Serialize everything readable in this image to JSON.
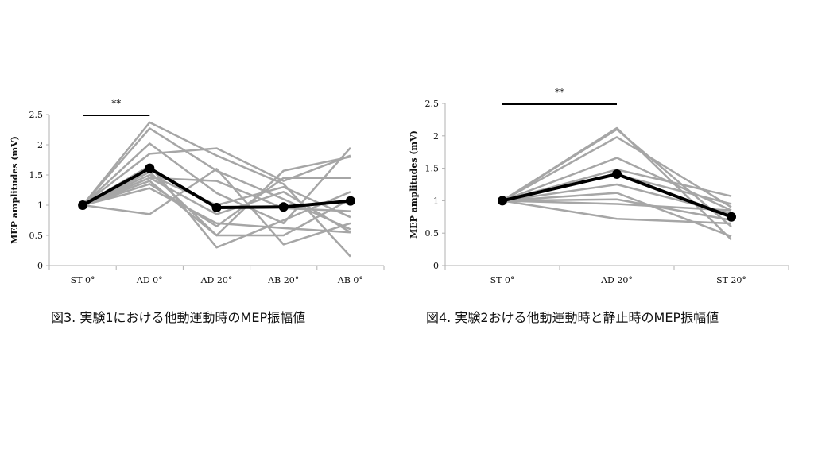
{
  "chart_data": [
    {
      "type": "line",
      "caption": "図3. 実験1における他動運動時のMEP振幅値",
      "ylabel": "MEP amplitudes (mV)",
      "categories": [
        "ST 0°",
        "AD 0°",
        "AD 20°",
        "AB 20°",
        "AB 0°"
      ],
      "ylim": [
        0,
        2.5
      ],
      "yticks": [
        0,
        0.5,
        1,
        1.5,
        2,
        2.5
      ],
      "ytick_labels": [
        "0",
        "0.5",
        "1",
        "1.5",
        "2",
        "2.5"
      ],
      "grid": false,
      "significance": {
        "label": "**",
        "from": 0,
        "to": 1
      },
      "individual_color": "#a6a6a6",
      "mean_color": "#000000",
      "individual_series": [
        [
          1.0,
          2.37,
          1.82,
          1.35,
          0.15
        ],
        [
          1.0,
          2.27,
          1.57,
          1.1,
          0.6
        ],
        [
          1.0,
          2.02,
          1.2,
          0.7,
          1.95
        ],
        [
          1.0,
          1.85,
          1.94,
          1.4,
          1.82
        ],
        [
          1.0,
          1.65,
          0.3,
          0.75,
          1.22
        ],
        [
          1.0,
          1.55,
          0.5,
          1.57,
          1.8
        ],
        [
          1.0,
          1.5,
          1.0,
          1.3,
          0.8
        ],
        [
          1.0,
          1.45,
          0.85,
          1.22,
          0.55
        ],
        [
          1.0,
          1.4,
          0.5,
          0.5,
          1.1
        ],
        [
          1.0,
          1.35,
          0.65,
          1.45,
          1.45
        ],
        [
          1.0,
          1.28,
          0.7,
          0.62,
          0.55
        ],
        [
          1.0,
          0.85,
          1.6,
          0.35,
          0.7
        ],
        [
          1.0,
          1.45,
          1.4,
          0.95,
          0.9
        ]
      ],
      "mean": [
        1.0,
        1.61,
        0.96,
        0.97,
        1.07
      ]
    },
    {
      "type": "line",
      "caption": "図4. 実験2おける他動運動時と静止時のMEP振幅値",
      "ylabel": "MEP amplitudes (mV)",
      "categories": [
        "ST 0°",
        "AD 20°",
        "ST 20°"
      ],
      "ylim": [
        0,
        2.5
      ],
      "yticks": [
        0,
        0.5,
        1,
        1.5,
        2,
        2.5
      ],
      "ytick_labels": [
        "0",
        "0.5",
        "1",
        "1.5",
        "2",
        "2.5"
      ],
      "grid": false,
      "significance": {
        "label": "**",
        "from": 0,
        "to": 1
      },
      "individual_color": "#a6a6a6",
      "mean_color": "#000000",
      "individual_series": [
        [
          1.0,
          2.12,
          0.4
        ],
        [
          1.0,
          2.1,
          0.6
        ],
        [
          1.0,
          1.98,
          0.9
        ],
        [
          1.0,
          1.66,
          0.85
        ],
        [
          1.0,
          1.48,
          1.07
        ],
        [
          1.0,
          1.4,
          0.95
        ],
        [
          1.0,
          1.25,
          0.8
        ],
        [
          1.0,
          1.12,
          0.45
        ],
        [
          1.0,
          1.02,
          0.7
        ],
        [
          1.0,
          0.95,
          0.85
        ],
        [
          1.0,
          0.72,
          0.65
        ]
      ],
      "mean": [
        1.0,
        1.41,
        0.75
      ]
    }
  ]
}
